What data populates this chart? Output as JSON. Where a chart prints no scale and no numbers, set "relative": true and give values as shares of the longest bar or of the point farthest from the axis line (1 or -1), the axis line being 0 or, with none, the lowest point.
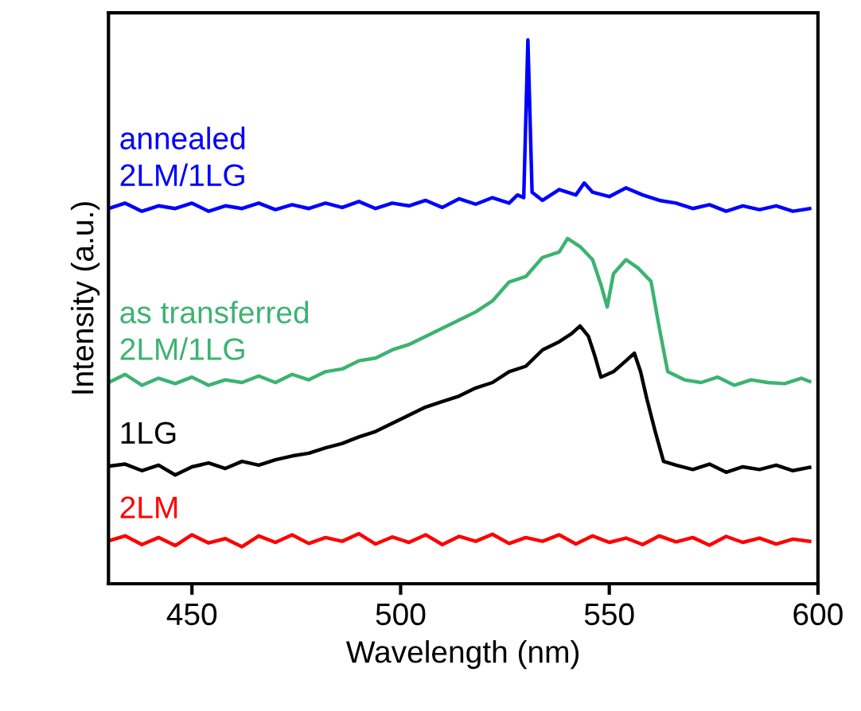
{
  "chart_data": {
    "type": "line",
    "relative": true,
    "xlabel": "Wavelength (nm)",
    "ylabel": "Intensity (a.u.)",
    "xlim": [
      430,
      600
    ],
    "xticks": [
      450,
      500,
      550,
      600
    ],
    "grid": false,
    "legend": false,
    "marker": "none",
    "line_style": "solid",
    "tick_labels": "x",
    "series": [
      {
        "name": "annealed\n2LM/1LG",
        "color": "#0000ff",
        "x": [
          430,
          434,
          438,
          442,
          446,
          450,
          454,
          458,
          462,
          466,
          470,
          474,
          478,
          482,
          486,
          490,
          494,
          498,
          502,
          506,
          510,
          514,
          518,
          522,
          526,
          528,
          529.5,
          530.5,
          531.5,
          534,
          538,
          542,
          544,
          546,
          550,
          554,
          558,
          562,
          566,
          570,
          574,
          578,
          582,
          586,
          590,
          594,
          598
        ],
        "values": [
          0.69,
          0.7,
          0.685,
          0.695,
          0.69,
          0.7,
          0.685,
          0.695,
          0.69,
          0.7,
          0.688,
          0.697,
          0.69,
          0.7,
          0.692,
          0.703,
          0.69,
          0.7,
          0.695,
          0.705,
          0.692,
          0.708,
          0.698,
          0.71,
          0.7,
          0.715,
          0.71,
          1.0,
          0.72,
          0.705,
          0.725,
          0.715,
          0.737,
          0.72,
          0.712,
          0.728,
          0.715,
          0.705,
          0.7,
          0.69,
          0.697,
          0.685,
          0.695,
          0.688,
          0.695,
          0.685,
          0.69
        ]
      },
      {
        "name": "as transferred\n2LM/1LG",
        "color": "#3cb371",
        "x": [
          430,
          434,
          438,
          442,
          446,
          450,
          454,
          458,
          462,
          466,
          470,
          474,
          478,
          482,
          486,
          490,
          494,
          498,
          502,
          506,
          510,
          514,
          518,
          522,
          526,
          530,
          534,
          538,
          540,
          543,
          546,
          548,
          549.5,
          551,
          554,
          557,
          560,
          562,
          564,
          568,
          572,
          576,
          580,
          584,
          588,
          592,
          596,
          598
        ],
        "values": [
          0.37,
          0.385,
          0.365,
          0.378,
          0.368,
          0.38,
          0.365,
          0.375,
          0.37,
          0.382,
          0.37,
          0.385,
          0.375,
          0.39,
          0.395,
          0.41,
          0.415,
          0.43,
          0.44,
          0.455,
          0.47,
          0.485,
          0.5,
          0.52,
          0.555,
          0.565,
          0.6,
          0.61,
          0.635,
          0.62,
          0.596,
          0.55,
          0.509,
          0.57,
          0.596,
          0.58,
          0.556,
          0.47,
          0.39,
          0.375,
          0.37,
          0.38,
          0.365,
          0.375,
          0.37,
          0.368,
          0.378,
          0.372
        ]
      },
      {
        "name": "1LG",
        "color": "#000000",
        "x": [
          430,
          434,
          438,
          442,
          446,
          450,
          454,
          458,
          462,
          466,
          470,
          474,
          478,
          482,
          486,
          490,
          494,
          498,
          502,
          506,
          510,
          514,
          518,
          522,
          526,
          530,
          534,
          538,
          541,
          543,
          545,
          546.5,
          548,
          551,
          554,
          556,
          557.5,
          559,
          561,
          563,
          566,
          570,
          574,
          578,
          582,
          586,
          590,
          594,
          598
        ],
        "values": [
          0.216,
          0.22,
          0.208,
          0.218,
          0.2,
          0.215,
          0.222,
          0.212,
          0.225,
          0.218,
          0.228,
          0.235,
          0.24,
          0.25,
          0.258,
          0.27,
          0.28,
          0.295,
          0.31,
          0.325,
          0.335,
          0.345,
          0.36,
          0.37,
          0.39,
          0.4,
          0.43,
          0.445,
          0.46,
          0.474,
          0.455,
          0.42,
          0.38,
          0.39,
          0.41,
          0.424,
          0.39,
          0.34,
          0.28,
          0.225,
          0.218,
          0.21,
          0.22,
          0.205,
          0.215,
          0.21,
          0.218,
          0.208,
          0.214
        ]
      },
      {
        "name": "2LM",
        "color": "#ff0000",
        "x": [
          430,
          434,
          438,
          442,
          446,
          450,
          454,
          458,
          462,
          466,
          470,
          474,
          478,
          482,
          486,
          490,
          494,
          498,
          502,
          506,
          510,
          514,
          518,
          522,
          526,
          530,
          534,
          538,
          542,
          546,
          550,
          554,
          558,
          562,
          566,
          570,
          574,
          578,
          582,
          586,
          590,
          594,
          598
        ],
        "values": [
          0.079,
          0.088,
          0.072,
          0.085,
          0.07,
          0.09,
          0.075,
          0.083,
          0.068,
          0.088,
          0.076,
          0.09,
          0.074,
          0.085,
          0.078,
          0.092,
          0.073,
          0.086,
          0.076,
          0.09,
          0.072,
          0.087,
          0.078,
          0.091,
          0.074,
          0.085,
          0.078,
          0.09,
          0.073,
          0.088,
          0.076,
          0.084,
          0.072,
          0.088,
          0.077,
          0.085,
          0.071,
          0.087,
          0.076,
          0.084,
          0.073,
          0.082,
          0.078
        ]
      }
    ]
  }
}
